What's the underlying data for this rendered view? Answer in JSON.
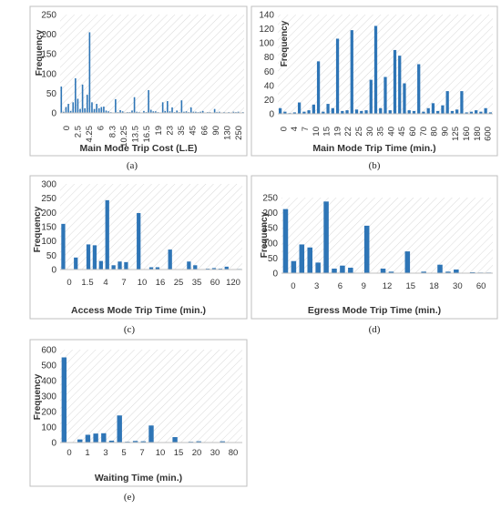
{
  "colors": {
    "bar": "#2e75b6",
    "frame": "#bfbfbf",
    "hatch": "#d9d9d9"
  },
  "captions": [
    "(a)",
    "(b)",
    "(c)",
    "(d)",
    "(e)"
  ],
  "chart_data": [
    {
      "type": "bar",
      "panel": "a",
      "xlabel": "Main Mode Trip Cost (L.E)",
      "ylabel": "Frequency",
      "ylim": [
        0,
        250
      ],
      "yticks": [
        0,
        50,
        100,
        150,
        200,
        250
      ],
      "xtick_labels": [
        "0",
        "2.5",
        "4.25",
        "6",
        "8.3",
        "10.25",
        "13.5",
        "16.5",
        "19",
        "23",
        "35",
        "45",
        "66",
        "90",
        "130",
        "250"
      ],
      "grid": "diagonal-hatch",
      "values": [
        67,
        3,
        15,
        23,
        5,
        27,
        88,
        36,
        10,
        72,
        12,
        46,
        205,
        27,
        10,
        23,
        12,
        15,
        16,
        6,
        4,
        2,
        1,
        35,
        2,
        7,
        4,
        1,
        2,
        2,
        6,
        40,
        3,
        2,
        1,
        5,
        2,
        58,
        8,
        4,
        4,
        2,
        1,
        27,
        5,
        30,
        4,
        14,
        2,
        6,
        2,
        32,
        3,
        4,
        2,
        14,
        3,
        3,
        2,
        3,
        5,
        1,
        2,
        2,
        1,
        10,
        2,
        3,
        1,
        2,
        1,
        2,
        1,
        3,
        2,
        3,
        1,
        2
      ]
    },
    {
      "type": "bar",
      "panel": "b",
      "xlabel": "Main Mode Trip Time (min.)",
      "ylabel": "Frequency",
      "ylim": [
        0,
        140
      ],
      "yticks": [
        0,
        20,
        40,
        60,
        80,
        100,
        120,
        140
      ],
      "xtick_labels": [
        "0",
        "4",
        "7",
        "10",
        "15",
        "19",
        "22",
        "25",
        "30",
        "35",
        "40",
        "45",
        "60",
        "70",
        "80",
        "90",
        "125",
        "160",
        "180",
        "600"
      ],
      "grid": "diagonal-hatch",
      "values": [
        8,
        3,
        1,
        2,
        16,
        3,
        5,
        13,
        74,
        3,
        14,
        8,
        106,
        4,
        5,
        118,
        6,
        4,
        5,
        48,
        124,
        8,
        52,
        5,
        90,
        82,
        43,
        5,
        4,
        70,
        3,
        8,
        15,
        4,
        12,
        32,
        4,
        6,
        32,
        2,
        3,
        5,
        3,
        8,
        2
      ]
    },
    {
      "type": "bar",
      "panel": "c",
      "xlabel": "Access Mode Trip Time (min.)",
      "ylabel": "Frequency",
      "ylim": [
        0,
        300
      ],
      "yticks": [
        0,
        50,
        100,
        150,
        200,
        250,
        300
      ],
      "xtick_labels": [
        "0",
        "1.5",
        "4",
        "7",
        "10",
        "16",
        "25",
        "35",
        "60",
        "120"
      ],
      "grid": "diagonal-hatch",
      "values": [
        160,
        0,
        42,
        0,
        88,
        85,
        30,
        243,
        15,
        28,
        26,
        0,
        198,
        0,
        8,
        8,
        0,
        70,
        0,
        0,
        28,
        15,
        0,
        3,
        5,
        3,
        10,
        0,
        2
      ]
    },
    {
      "type": "bar",
      "panel": "d",
      "xlabel": "Egress Mode Trip Time (min.)",
      "ylabel": "Frequency",
      "ylim": [
        0,
        250
      ],
      "yticks": [
        0,
        50,
        100,
        150,
        200,
        250
      ],
      "xtick_labels": [
        "0",
        "3",
        "6",
        "9",
        "12",
        "15",
        "18",
        "30",
        "60"
      ],
      "grid": "diagonal-hatch",
      "values": [
        212,
        40,
        95,
        85,
        35,
        237,
        15,
        25,
        18,
        0,
        157,
        0,
        15,
        5,
        0,
        72,
        0,
        5,
        0,
        28,
        5,
        12,
        0,
        3,
        2,
        2
      ]
    },
    {
      "type": "bar",
      "panel": "e",
      "xlabel": "Waiting Time (min.)",
      "ylabel": "Frequency",
      "ylim": [
        0,
        600
      ],
      "yticks": [
        0,
        100,
        200,
        300,
        400,
        500,
        600
      ],
      "xtick_labels": [
        "0",
        "1",
        "3",
        "5",
        "7",
        "10",
        "15",
        "20",
        "30",
        "80"
      ],
      "grid": "diagonal-hatch",
      "values": [
        550,
        0,
        20,
        50,
        58,
        60,
        12,
        175,
        5,
        10,
        8,
        110,
        0,
        3,
        35,
        0,
        5,
        8,
        0,
        3,
        8,
        0,
        2
      ]
    }
  ]
}
